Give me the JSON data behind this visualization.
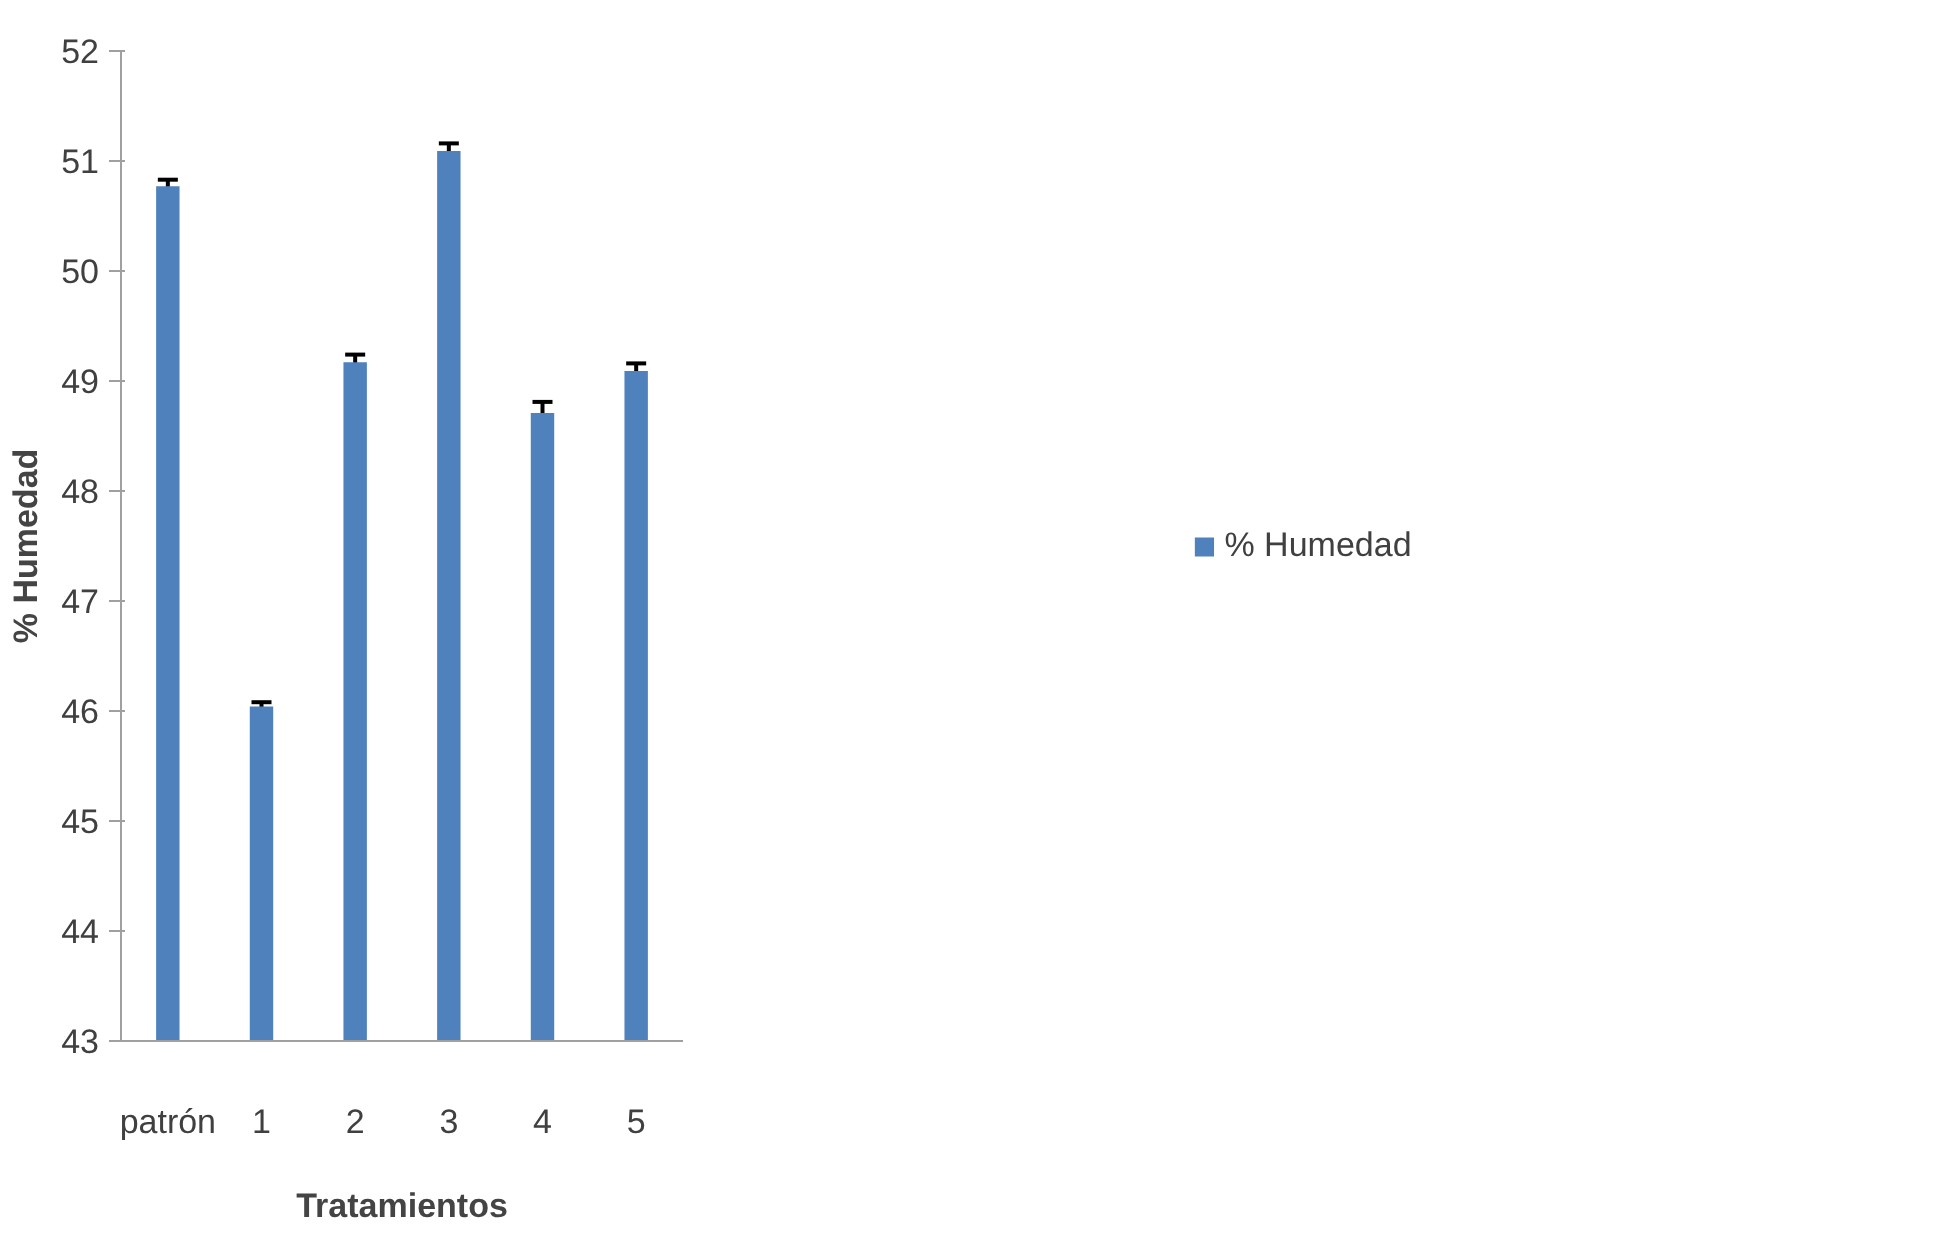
{
  "chart_data": {
    "type": "bar",
    "xlabel": "Tratamientos",
    "ylabel": "% Humedad",
    "categories": [
      "patrón",
      "1",
      "2",
      "3",
      "4",
      "5"
    ],
    "series": [
      {
        "name": "% Humedad",
        "color": "#4f81bd",
        "values": [
          50.77,
          46.04,
          49.17,
          51.09,
          48.71,
          49.09
        ],
        "errors": [
          0.06,
          0.04,
          0.07,
          0.07,
          0.1,
          0.07
        ]
      }
    ],
    "ylim": [
      43,
      52
    ],
    "yticks": [
      43,
      44,
      45,
      46,
      47,
      48,
      49,
      50,
      51,
      52
    ],
    "grid": false,
    "legend": "right"
  }
}
